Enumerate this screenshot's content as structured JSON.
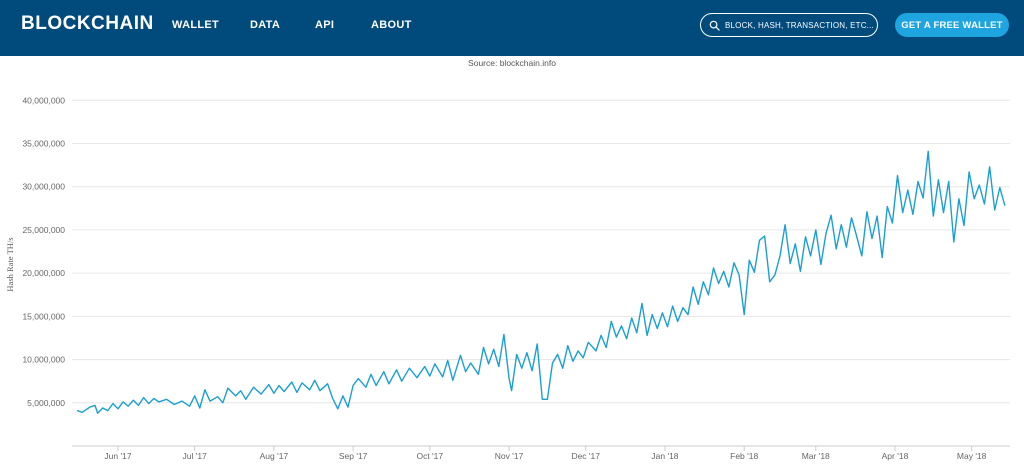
{
  "nav": {
    "logo": "BLOCKCHAIN",
    "links": [
      "WALLET",
      "DATA",
      "API",
      "ABOUT"
    ],
    "search_placeholder": "BLOCK, HASH, TRANSACTION, ETC...",
    "cta_label": "GET A FREE WALLET"
  },
  "colors": {
    "nav_bg": "#004a7c",
    "accent": "#1ea5e0",
    "series": "#1b9fd2",
    "grid": "#e6e6e6"
  },
  "source": "Source: blockchain.info",
  "chart_data": {
    "type": "line",
    "title": "",
    "xlabel": "",
    "ylabel": "Hash Rate TH/s",
    "ylim": [
      0,
      42000000
    ],
    "yticks": [
      5000000,
      10000000,
      15000000,
      20000000,
      25000000,
      30000000,
      35000000,
      40000000
    ],
    "ytick_labels": [
      "5,000,000",
      "10,000,000",
      "15,000,000",
      "20,000,000",
      "25,000,000",
      "30,000,000",
      "35,000,000",
      "40,000,000"
    ],
    "xlim": [
      "2017-05-14",
      "2018-05-16"
    ],
    "xticks": [
      "2017-06-01",
      "2017-07-01",
      "2017-08-01",
      "2017-09-01",
      "2017-10-01",
      "2017-11-01",
      "2017-12-01",
      "2018-01-01",
      "2018-02-01",
      "2018-03-01",
      "2018-04-01",
      "2018-05-01"
    ],
    "xtick_labels": [
      "Jun '17",
      "Jul '17",
      "Aug '17",
      "Sep '17",
      "Oct '17",
      "Nov '17",
      "Dec '17",
      "Jan '18",
      "Feb '18",
      "Mar '18",
      "Apr '18",
      "May '18"
    ],
    "grid": true,
    "legend": "none",
    "series": [
      {
        "points": [
          [
            "2017-05-16",
            4100000
          ],
          [
            "2017-05-18",
            3900000
          ],
          [
            "2017-05-21",
            4500000
          ],
          [
            "2017-05-23",
            4700000
          ],
          [
            "2017-05-24",
            3800000
          ],
          [
            "2017-05-26",
            4400000
          ],
          [
            "2017-05-28",
            4100000
          ],
          [
            "2017-05-30",
            4900000
          ],
          [
            "2017-06-01",
            4300000
          ],
          [
            "2017-06-03",
            5100000
          ],
          [
            "2017-06-05",
            4600000
          ],
          [
            "2017-06-07",
            5300000
          ],
          [
            "2017-06-09",
            4700000
          ],
          [
            "2017-06-11",
            5600000
          ],
          [
            "2017-06-13",
            4900000
          ],
          [
            "2017-06-15",
            5500000
          ],
          [
            "2017-06-17",
            5100000
          ],
          [
            "2017-06-20",
            5400000
          ],
          [
            "2017-06-23",
            4800000
          ],
          [
            "2017-06-26",
            5200000
          ],
          [
            "2017-06-29",
            4600000
          ],
          [
            "2017-07-01",
            5800000
          ],
          [
            "2017-07-03",
            4400000
          ],
          [
            "2017-07-05",
            6500000
          ],
          [
            "2017-07-07",
            5200000
          ],
          [
            "2017-07-10",
            5700000
          ],
          [
            "2017-07-12",
            5000000
          ],
          [
            "2017-07-14",
            6700000
          ],
          [
            "2017-07-17",
            5800000
          ],
          [
            "2017-07-19",
            6400000
          ],
          [
            "2017-07-21",
            5400000
          ],
          [
            "2017-07-24",
            6800000
          ],
          [
            "2017-07-27",
            6000000
          ],
          [
            "2017-07-30",
            7100000
          ],
          [
            "2017-08-01",
            6100000
          ],
          [
            "2017-08-03",
            7000000
          ],
          [
            "2017-08-05",
            6300000
          ],
          [
            "2017-08-08",
            7400000
          ],
          [
            "2017-08-10",
            6200000
          ],
          [
            "2017-08-12",
            7300000
          ],
          [
            "2017-08-15",
            6500000
          ],
          [
            "2017-08-17",
            7600000
          ],
          [
            "2017-08-19",
            6400000
          ],
          [
            "2017-08-22",
            7200000
          ],
          [
            "2017-08-24",
            5500000
          ],
          [
            "2017-08-26",
            4300000
          ],
          [
            "2017-08-28",
            5800000
          ],
          [
            "2017-08-30",
            4500000
          ],
          [
            "2017-09-01",
            7000000
          ],
          [
            "2017-09-03",
            7800000
          ],
          [
            "2017-09-06",
            6800000
          ],
          [
            "2017-09-08",
            8300000
          ],
          [
            "2017-09-10",
            7000000
          ],
          [
            "2017-09-13",
            8600000
          ],
          [
            "2017-09-15",
            7200000
          ],
          [
            "2017-09-18",
            8800000
          ],
          [
            "2017-09-20",
            7500000
          ],
          [
            "2017-09-23",
            9000000
          ],
          [
            "2017-09-26",
            7900000
          ],
          [
            "2017-09-29",
            9200000
          ],
          [
            "2017-10-01",
            8100000
          ],
          [
            "2017-10-03",
            9500000
          ],
          [
            "2017-10-06",
            8000000
          ],
          [
            "2017-10-08",
            9900000
          ],
          [
            "2017-10-10",
            7600000
          ],
          [
            "2017-10-13",
            10500000
          ],
          [
            "2017-10-15",
            8600000
          ],
          [
            "2017-10-17",
            9600000
          ],
          [
            "2017-10-20",
            8300000
          ],
          [
            "2017-10-22",
            11400000
          ],
          [
            "2017-10-24",
            9500000
          ],
          [
            "2017-10-26",
            11200000
          ],
          [
            "2017-10-28",
            9200000
          ],
          [
            "2017-10-30",
            12900000
          ],
          [
            "2017-11-01",
            7800000
          ],
          [
            "2017-11-02",
            6400000
          ],
          [
            "2017-11-04",
            10600000
          ],
          [
            "2017-11-06",
            9000000
          ],
          [
            "2017-11-08",
            10800000
          ],
          [
            "2017-11-10",
            8700000
          ],
          [
            "2017-11-12",
            11800000
          ],
          [
            "2017-11-14",
            5400000
          ],
          [
            "2017-11-16",
            5400000
          ],
          [
            "2017-11-18",
            9600000
          ],
          [
            "2017-11-20",
            10600000
          ],
          [
            "2017-11-22",
            9000000
          ],
          [
            "2017-11-24",
            11600000
          ],
          [
            "2017-11-26",
            9800000
          ],
          [
            "2017-11-28",
            11000000
          ],
          [
            "2017-11-30",
            10200000
          ],
          [
            "2017-12-02",
            12000000
          ],
          [
            "2017-12-05",
            11000000
          ],
          [
            "2017-12-07",
            12800000
          ],
          [
            "2017-12-09",
            11400000
          ],
          [
            "2017-12-11",
            14400000
          ],
          [
            "2017-12-13",
            12600000
          ],
          [
            "2017-12-15",
            13900000
          ],
          [
            "2017-12-17",
            12400000
          ],
          [
            "2017-12-19",
            14800000
          ],
          [
            "2017-12-21",
            13100000
          ],
          [
            "2017-12-23",
            16500000
          ],
          [
            "2017-12-25",
            12800000
          ],
          [
            "2017-12-27",
            15200000
          ],
          [
            "2017-12-29",
            13600000
          ],
          [
            "2017-12-31",
            15400000
          ],
          [
            "2018-01-02",
            13800000
          ],
          [
            "2018-01-04",
            16200000
          ],
          [
            "2018-01-06",
            14400000
          ],
          [
            "2018-01-08",
            16000000
          ],
          [
            "2018-01-10",
            15200000
          ],
          [
            "2018-01-12",
            18400000
          ],
          [
            "2018-01-14",
            16400000
          ],
          [
            "2018-01-16",
            19000000
          ],
          [
            "2018-01-18",
            17500000
          ],
          [
            "2018-01-20",
            20600000
          ],
          [
            "2018-01-22",
            18800000
          ],
          [
            "2018-01-24",
            20200000
          ],
          [
            "2018-01-26",
            18400000
          ],
          [
            "2018-01-28",
            21200000
          ],
          [
            "2018-01-30",
            19800000
          ],
          [
            "2018-02-01",
            15200000
          ],
          [
            "2018-02-03",
            21500000
          ],
          [
            "2018-02-05",
            20100000
          ],
          [
            "2018-02-07",
            23800000
          ],
          [
            "2018-02-09",
            24300000
          ],
          [
            "2018-02-11",
            19000000
          ],
          [
            "2018-02-13",
            19800000
          ],
          [
            "2018-02-15",
            22000000
          ],
          [
            "2018-02-17",
            25600000
          ],
          [
            "2018-02-19",
            21100000
          ],
          [
            "2018-02-21",
            23400000
          ],
          [
            "2018-02-23",
            20200000
          ],
          [
            "2018-02-25",
            24200000
          ],
          [
            "2018-02-27",
            22000000
          ],
          [
            "2018-03-01",
            25000000
          ],
          [
            "2018-03-03",
            21000000
          ],
          [
            "2018-03-05",
            24600000
          ],
          [
            "2018-03-07",
            26700000
          ],
          [
            "2018-03-09",
            22800000
          ],
          [
            "2018-03-11",
            25600000
          ],
          [
            "2018-03-13",
            23000000
          ],
          [
            "2018-03-15",
            26400000
          ],
          [
            "2018-03-17",
            24300000
          ],
          [
            "2018-03-19",
            22000000
          ],
          [
            "2018-03-21",
            27100000
          ],
          [
            "2018-03-23",
            24000000
          ],
          [
            "2018-03-25",
            26600000
          ],
          [
            "2018-03-27",
            21800000
          ],
          [
            "2018-03-29",
            27700000
          ],
          [
            "2018-03-31",
            25800000
          ],
          [
            "2018-04-02",
            31300000
          ],
          [
            "2018-04-04",
            27000000
          ],
          [
            "2018-04-06",
            29600000
          ],
          [
            "2018-04-08",
            26800000
          ],
          [
            "2018-04-10",
            30600000
          ],
          [
            "2018-04-12",
            28700000
          ],
          [
            "2018-04-14",
            34100000
          ],
          [
            "2018-04-16",
            26600000
          ],
          [
            "2018-04-18",
            30800000
          ],
          [
            "2018-04-20",
            27000000
          ],
          [
            "2018-04-22",
            30600000
          ],
          [
            "2018-04-24",
            23600000
          ],
          [
            "2018-04-26",
            28600000
          ],
          [
            "2018-04-28",
            25500000
          ],
          [
            "2018-04-30",
            31700000
          ],
          [
            "2018-05-02",
            28600000
          ],
          [
            "2018-05-04",
            30200000
          ],
          [
            "2018-05-06",
            28000000
          ],
          [
            "2018-05-08",
            32300000
          ],
          [
            "2018-05-10",
            27300000
          ],
          [
            "2018-05-12",
            29900000
          ],
          [
            "2018-05-14",
            27800000
          ]
        ]
      }
    ]
  }
}
